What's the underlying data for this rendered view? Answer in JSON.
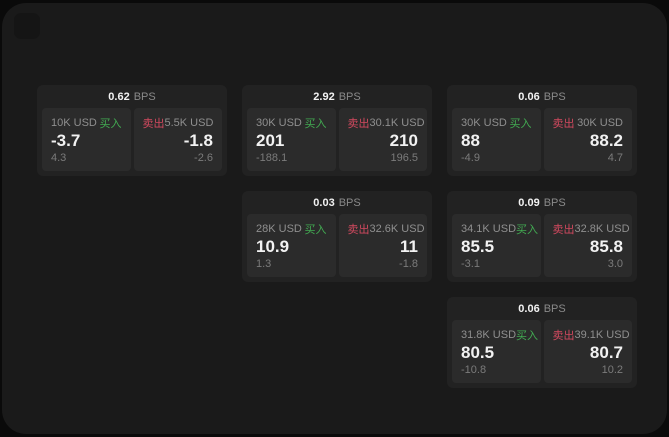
{
  "labels": {
    "bps_unit": "BPS",
    "buy": "买入",
    "sell": "卖出"
  },
  "colors": {
    "outer_bg": "#0a0a0a",
    "page_bg": "#1a1a1a",
    "card_bg": "#222222",
    "panel_bg": "#2b2b2b",
    "buy_green": "#42ab52",
    "sell_red": "#d2495f",
    "text_primary": "#f2f2f2",
    "text_secondary": "#8f8f8f",
    "text_tertiary": "#7b7b7b"
  },
  "cards": [
    {
      "bps": "0.62",
      "buy": {
        "amount": "10K USD",
        "price": "-3.7",
        "change": "4.3"
      },
      "sell": {
        "amount": "5.5K USD",
        "price": "-1.8",
        "change": "-2.6"
      }
    },
    {
      "bps": "2.92",
      "buy": {
        "amount": "30K USD",
        "price": "201",
        "change": "-188.1"
      },
      "sell": {
        "amount": "30.1K USD",
        "price": "210",
        "change": "196.5"
      }
    },
    {
      "bps": "0.06",
      "buy": {
        "amount": "30K USD",
        "price": "88",
        "change": "-4.9"
      },
      "sell": {
        "amount": "30K USD",
        "price": "88.2",
        "change": "4.7"
      }
    },
    {
      "bps": "0.03",
      "buy": {
        "amount": "28K USD",
        "price": "10.9",
        "change": "1.3"
      },
      "sell": {
        "amount": "32.6K USD",
        "price": "11",
        "change": "-1.8"
      }
    },
    {
      "bps": "0.09",
      "buy": {
        "amount": "34.1K USD",
        "price": "85.5",
        "change": "-3.1"
      },
      "sell": {
        "amount": "32.8K USD",
        "price": "85.8",
        "change": "3.0"
      }
    },
    {
      "bps": "0.06",
      "buy": {
        "amount": "31.8K USD",
        "price": "80.5",
        "change": "-10.8"
      },
      "sell": {
        "amount": "39.1K USD",
        "price": "80.7",
        "change": "10.2"
      }
    }
  ]
}
